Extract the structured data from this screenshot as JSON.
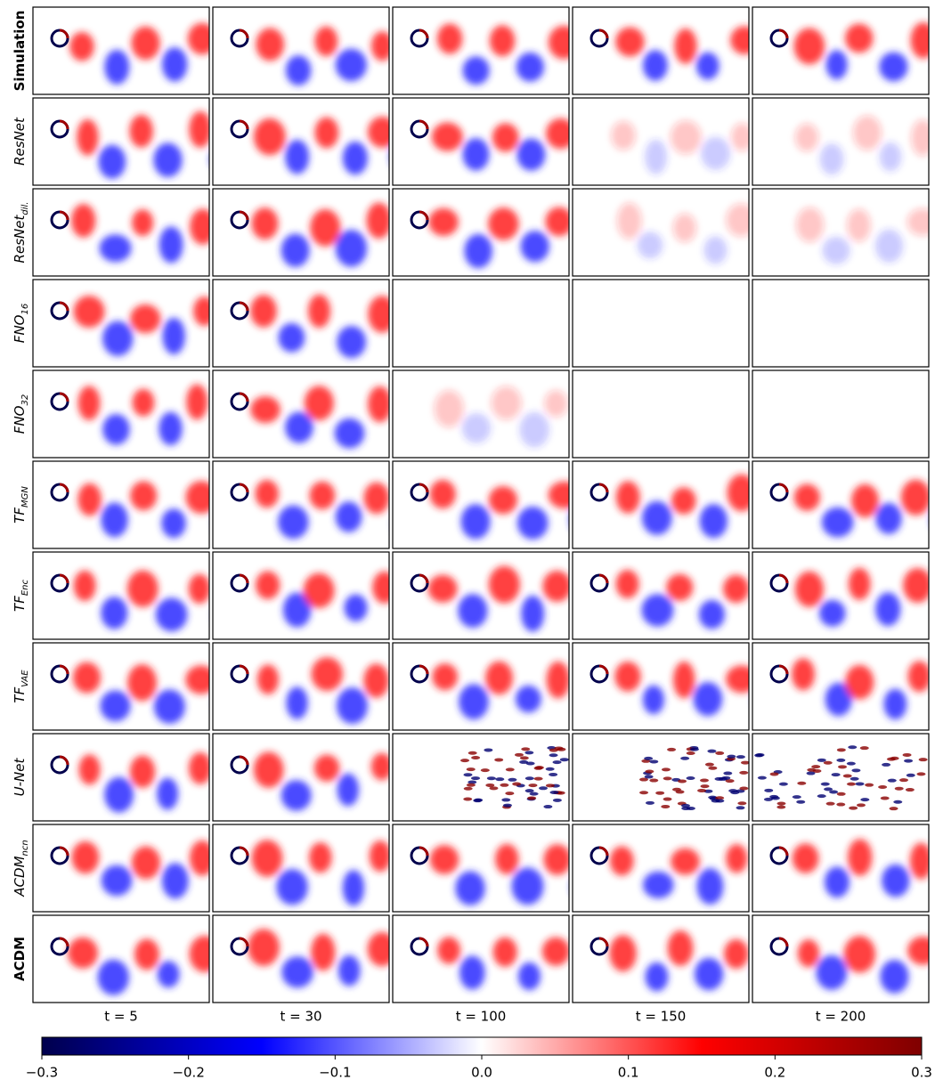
{
  "rows": [
    {
      "label": "Simulation",
      "bold": true
    },
    {
      "label": "ResNet"
    },
    {
      "label": "ResNet",
      "subscript": "dil."
    },
    {
      "label": "FNO",
      "subscript": "16"
    },
    {
      "label": "FNO",
      "subscript": "32"
    },
    {
      "label": "TF",
      "subscript": "MGN"
    },
    {
      "label": "TF",
      "subscript": "Enc"
    },
    {
      "label": "TF",
      "subscript": "VAE"
    },
    {
      "label": "U-Net"
    },
    {
      "label": "ACDM",
      "subscript": "ncn"
    },
    {
      "label": "ACDM",
      "bold": true
    }
  ],
  "columns": [
    "t = 5",
    "t = 30",
    "t = 100",
    "t = 150",
    "t = 200"
  ],
  "colorbar": {
    "lim": [
      -0.3,
      0.3
    ],
    "ticks": [
      {
        "value": -0.3,
        "label": "−0.3"
      },
      {
        "value": -0.2,
        "label": "−0.2"
      },
      {
        "value": -0.1,
        "label": "−0.1"
      },
      {
        "value": 0,
        "label": "0.0"
      },
      0.1,
      0.2,
      0.3
    ]
  }
}
